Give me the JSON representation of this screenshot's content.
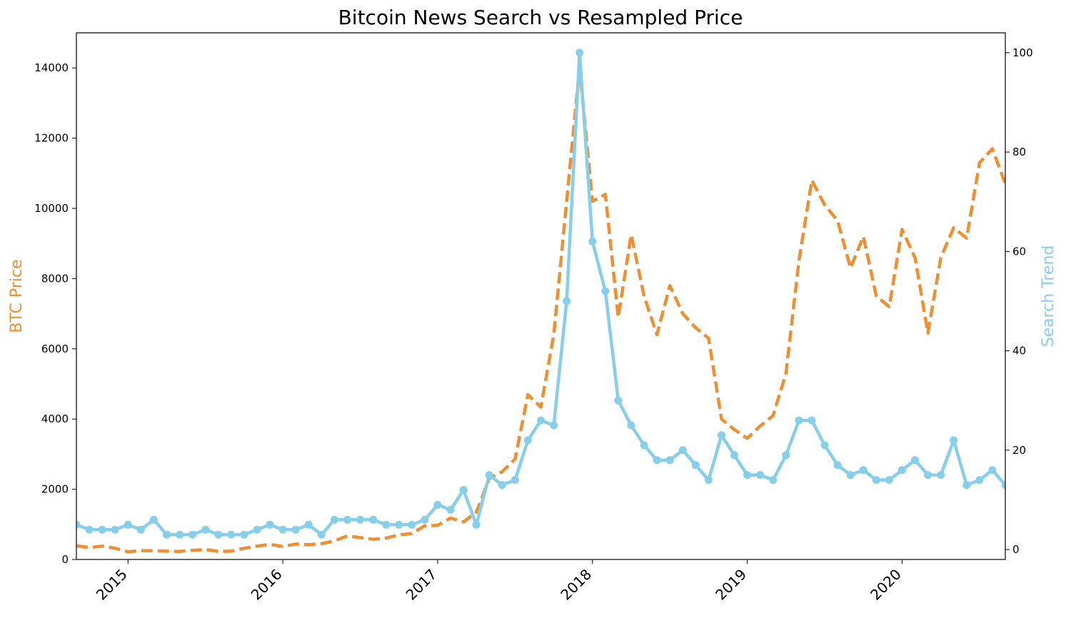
{
  "chart_data": {
    "type": "line",
    "title": "Bitcoin News Search vs Resampled Price",
    "xlabel": "",
    "ylabel_left": "BTC Price",
    "ylabel_right": "Search Trend",
    "x_start": "2014-09",
    "x_end": "2020-09",
    "x_ticks": [
      "2015",
      "2016",
      "2017",
      "2018",
      "2019",
      "2020"
    ],
    "ylim_left": [
      0,
      15000
    ],
    "yticks_left": [
      0,
      2000,
      4000,
      6000,
      8000,
      10000,
      12000,
      14000
    ],
    "ylim_right": [
      -2,
      104
    ],
    "yticks_right": [
      0,
      20,
      40,
      60,
      80,
      100
    ],
    "grid": false,
    "months": [
      "2014-09",
      "2014-10",
      "2014-11",
      "2014-12",
      "2015-01",
      "2015-02",
      "2015-03",
      "2015-04",
      "2015-05",
      "2015-06",
      "2015-07",
      "2015-08",
      "2015-09",
      "2015-10",
      "2015-11",
      "2015-12",
      "2016-01",
      "2016-02",
      "2016-03",
      "2016-04",
      "2016-05",
      "2016-06",
      "2016-07",
      "2016-08",
      "2016-09",
      "2016-10",
      "2016-11",
      "2016-12",
      "2017-01",
      "2017-02",
      "2017-03",
      "2017-04",
      "2017-05",
      "2017-06",
      "2017-07",
      "2017-08",
      "2017-09",
      "2017-10",
      "2017-11",
      "2017-12",
      "2018-01",
      "2018-02",
      "2018-03",
      "2018-04",
      "2018-05",
      "2018-06",
      "2018-07",
      "2018-08",
      "2018-09",
      "2018-10",
      "2018-11",
      "2018-12",
      "2019-01",
      "2019-02",
      "2019-03",
      "2019-04",
      "2019-05",
      "2019-06",
      "2019-07",
      "2019-08",
      "2019-09",
      "2019-10",
      "2019-11",
      "2019-12",
      "2020-01",
      "2020-02",
      "2020-03",
      "2020-04",
      "2020-05",
      "2020-06",
      "2020-07",
      "2020-08",
      "2020-09"
    ],
    "series": [
      {
        "name": "BTC Price",
        "axis": "left",
        "color": "#ED8F32",
        "style": "dashed",
        "values": [
          390,
          340,
          380,
          320,
          220,
          255,
          245,
          235,
          230,
          260,
          285,
          230,
          235,
          320,
          380,
          430,
          370,
          440,
          420,
          450,
          530,
          670,
          625,
          575,
          610,
          700,
          740,
          960,
          970,
          1180,
          1070,
          1350,
          2300,
          2500,
          2860,
          4700,
          4340,
          6400,
          10200,
          14000,
          10200,
          10400,
          6900,
          9250,
          7500,
          6400,
          7800,
          7000,
          6600,
          6300,
          4000,
          3700,
          3450,
          3800,
          4100,
          5300,
          8500,
          10800,
          10100,
          9650,
          8300,
          9200,
          7500,
          7200,
          9400,
          8600,
          6450,
          8600,
          9450,
          9150,
          11300,
          11700,
          10700
        ]
      },
      {
        "name": "Search Trend",
        "axis": "right",
        "color": "#87CEEB",
        "style": "solid",
        "values": [
          5,
          4,
          4,
          4,
          5,
          4,
          6,
          3,
          3,
          3,
          4,
          3,
          3,
          3,
          4,
          5,
          4,
          4,
          5,
          3,
          6,
          6,
          6,
          6,
          5,
          5,
          5,
          6,
          9,
          8,
          12,
          5,
          15,
          13,
          14,
          22,
          26,
          25,
          50,
          100,
          62,
          52,
          30,
          25,
          21,
          18,
          18,
          20,
          17,
          14,
          23,
          19,
          15,
          15,
          14,
          19,
          26,
          26,
          21,
          17,
          15,
          16,
          14,
          14,
          16,
          18,
          15,
          15,
          22,
          13,
          14,
          16,
          13
        ]
      }
    ]
  }
}
